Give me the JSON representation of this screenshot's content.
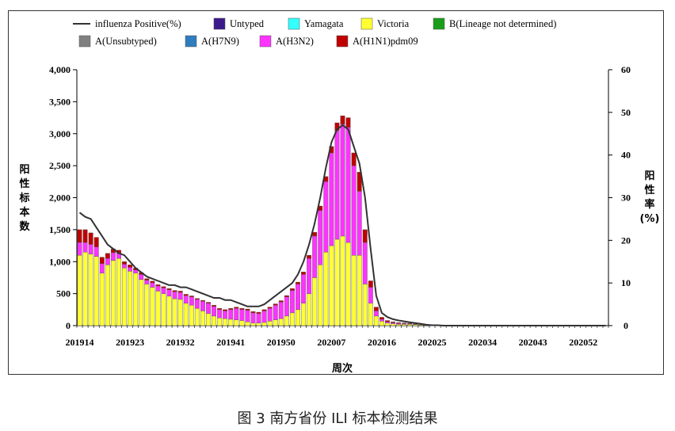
{
  "caption": "图 3 南方省份 ILI 标本检测结果",
  "chart_data": {
    "type": "bar",
    "stacked": true,
    "xlabel": "周次",
    "ylabel": "阳性标本数",
    "y2label": "阳性率(%)",
    "ylim": [
      0,
      4000
    ],
    "y2lim": [
      0,
      60
    ],
    "yticks": [
      "0",
      "500",
      "1,000",
      "1,500",
      "2,000",
      "2,500",
      "3,000",
      "3,500",
      "4,000"
    ],
    "y2ticks": [
      "0",
      "10",
      "20",
      "30",
      "40",
      "50",
      "60"
    ],
    "xtick_labels": [
      "201914",
      "201923",
      "201932",
      "201941",
      "201950",
      "202007",
      "202016",
      "202025",
      "202034",
      "202043",
      "202052"
    ],
    "legend_position": "top",
    "legend": [
      {
        "name": "influenza Positive(%)",
        "type": "line",
        "color": "#000000"
      },
      {
        "name": "Untyped",
        "type": "bar",
        "color": "#3c1a8c"
      },
      {
        "name": "Yamagata",
        "type": "bar",
        "color": "#33ffff"
      },
      {
        "name": "Victoria",
        "type": "bar",
        "color": "#ffff33"
      },
      {
        "name": "B(Lineage not determined)",
        "type": "bar",
        "color": "#1a9e1a"
      },
      {
        "name": "A(Unsubtyped)",
        "type": "bar",
        "color": "#808080"
      },
      {
        "name": "A(H7N9)",
        "type": "bar",
        "color": "#2f7dbf"
      },
      {
        "name": "A(H3N2)",
        "type": "bar",
        "color": "#ff33ff"
      },
      {
        "name": "A(H1N1)pdm09",
        "type": "bar",
        "color": "#c00000"
      }
    ],
    "weeks_count": 95,
    "series": [
      {
        "name": "Victoria",
        "color": "#ffff33",
        "values": [
          1100,
          1150,
          1120,
          1080,
          820,
          950,
          1020,
          1050,
          900,
          850,
          820,
          720,
          650,
          600,
          540,
          500,
          460,
          420,
          410,
          350,
          320,
          270,
          230,
          190,
          150,
          120,
          110,
          100,
          90,
          80,
          60,
          40,
          40,
          50,
          70,
          90,
          110,
          150,
          200,
          250,
          350,
          500,
          750,
          950,
          1150,
          1250,
          1350,
          1400,
          1300,
          1100,
          1100,
          650,
          350,
          150,
          70,
          40,
          30,
          20,
          20,
          20,
          15,
          10,
          8,
          5,
          3,
          2,
          1,
          0,
          0,
          0,
          0,
          0,
          0,
          0,
          0,
          0,
          0,
          0,
          0,
          0,
          0,
          0,
          0,
          0,
          0,
          0,
          0,
          0,
          0,
          0,
          0,
          0,
          0,
          0,
          0
        ]
      },
      {
        "name": "A(H3N2)",
        "color": "#ff33ff",
        "values": [
          200,
          150,
          150,
          150,
          150,
          100,
          120,
          80,
          60,
          60,
          50,
          80,
          60,
          70,
          80,
          90,
          100,
          110,
          110,
          120,
          130,
          140,
          150,
          160,
          150,
          130,
          120,
          150,
          180,
          170,
          180,
          160,
          150,
          180,
          200,
          230,
          260,
          300,
          350,
          400,
          450,
          550,
          650,
          850,
          1100,
          1450,
          1700,
          1750,
          1800,
          1400,
          1000,
          650,
          250,
          80,
          30,
          20,
          15,
          15,
          12,
          10,
          8,
          5,
          4,
          3,
          2,
          1,
          0,
          0,
          0,
          0,
          0,
          0,
          0,
          0,
          0,
          0,
          0,
          0,
          0,
          0,
          0,
          0,
          0,
          0,
          0,
          0,
          0,
          0,
          0,
          0,
          0,
          0,
          0,
          0,
          0
        ]
      },
      {
        "name": "A(H1N1)pdm09",
        "color": "#c00000",
        "values": [
          200,
          200,
          180,
          150,
          100,
          80,
          60,
          50,
          40,
          40,
          30,
          30,
          25,
          25,
          20,
          20,
          20,
          20,
          20,
          20,
          15,
          15,
          15,
          15,
          20,
          20,
          20,
          20,
          20,
          20,
          20,
          20,
          20,
          20,
          20,
          20,
          20,
          20,
          30,
          30,
          40,
          50,
          60,
          70,
          80,
          100,
          120,
          130,
          150,
          200,
          300,
          200,
          100,
          60,
          30,
          20,
          15,
          12,
          10,
          8,
          6,
          4,
          3,
          2,
          1,
          1,
          0,
          0,
          0,
          0,
          0,
          0,
          0,
          0,
          0,
          0,
          0,
          0,
          0,
          0,
          0,
          0,
          0,
          0,
          0,
          0,
          0,
          0,
          0,
          0,
          0,
          0,
          0,
          0,
          0
        ]
      },
      {
        "name": "influenza Positive(%)",
        "color": "#000000",
        "type": "line",
        "axis": "y2",
        "values": [
          26.5,
          25.5,
          25,
          23,
          21,
          19,
          18,
          17,
          16.5,
          15,
          13.5,
          12.5,
          11.5,
          11,
          10.5,
          10,
          9.5,
          9.5,
          9,
          9,
          8.5,
          8,
          7.5,
          7,
          6.5,
          6.5,
          6,
          6,
          5.5,
          5,
          4.5,
          4.5,
          4.5,
          5,
          6,
          7,
          8,
          9,
          10,
          12,
          15,
          19,
          24,
          30,
          37,
          43,
          46,
          47,
          46,
          42,
          38,
          30,
          18,
          7,
          3,
          2,
          1.5,
          1.2,
          1,
          0.8,
          0.6,
          0.4,
          0.2,
          0.1,
          0.1,
          0,
          0,
          0,
          0,
          0,
          0,
          0,
          0,
          0,
          0,
          0,
          0,
          0,
          0,
          0,
          0,
          0,
          0,
          0,
          0,
          0,
          0,
          0,
          0,
          0,
          0,
          0,
          0,
          0,
          0
        ]
      }
    ]
  }
}
